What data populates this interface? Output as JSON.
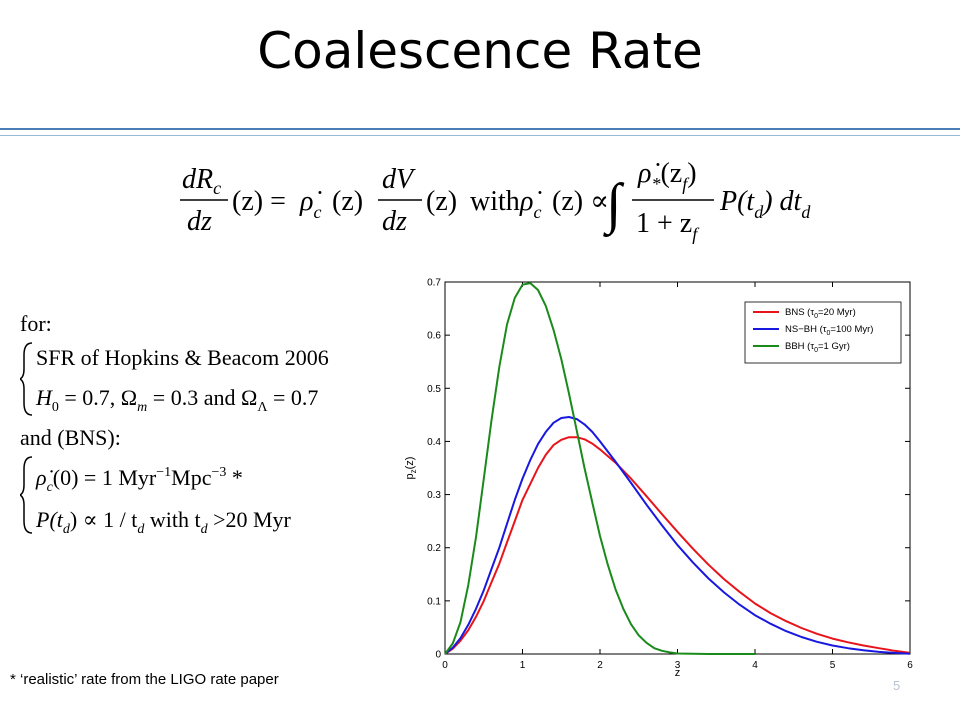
{
  "slide": {
    "title": "Coalescence Rate",
    "footnote": "* ‘realistic’ rate from the LIGO rate paper",
    "page_number": "5",
    "accent_color": "#4a7fb5"
  },
  "formula": {
    "lhs_num": "dR",
    "lhs_num_sub": "c",
    "lhs_den": "dz",
    "arg_z": "(z) =",
    "rho_glyph": "ρ̇",
    "rho_sub": "c",
    "rho_arg": "(z)",
    "dv_num": "dV",
    "dv_den": "dz",
    "dv_arg": "(z)",
    "with": "with",
    "rho2_arg": "(z) ∝",
    "integral": "∫",
    "star_glyph": "ρ̇",
    "star_sub": "*",
    "star_arg": "(z",
    "star_arg_sub": "f",
    "star_close": ")",
    "den_prefix": "1 + z",
    "den_sub": "f",
    "ptd": "P(t",
    "ptd_sub": "d",
    "ptd_close": ") dt",
    "dt_sub": "d"
  },
  "conditions": {
    "for_label": "for:",
    "line1": "SFR of Hopkins & Beacom 2006",
    "line2_h": "H",
    "line2_h_sub": "0",
    "line2_rest": " = 0.7,  Ω",
    "line2_om_sub": "m",
    "line2_mid": " = 0.3 and Ω",
    "line2_ol_sub": "Λ",
    "line2_end": " = 0.7",
    "bns_label": "and (BNS):",
    "rho_glyph": "ρ̇",
    "rho_sub": "c",
    "line3_rest": "(0) = 1 Myr",
    "line3_sup1": "−1",
    "line3_mpc": "Mpc",
    "line3_sup2": "−3",
    "line3_star": " *",
    "line4_p": "P(t",
    "line4_p_sub": "d",
    "line4_mid": ") ∝ 1 / t",
    "line4_td_sub": "d",
    "line4_with": "  with t",
    "line4_with_sub": "d",
    "line4_end": " >20 Myr"
  },
  "chart_data": {
    "type": "line",
    "xlabel": "z",
    "ylabel": "p_z(z)",
    "xlim": [
      0,
      6
    ],
    "ylim": [
      0,
      0.7
    ],
    "xticks": [
      "0",
      "1",
      "2",
      "3",
      "4",
      "5",
      "6"
    ],
    "yticks": [
      "0",
      "0.1",
      "0.2",
      "0.3",
      "0.4",
      "0.5",
      "0.6",
      "0.7"
    ],
    "grid": false,
    "legend_position": "top-right",
    "series": [
      {
        "name": "BNS (τ₀=20 Myr)",
        "legend_prefix": "BNS (τ",
        "legend_sub": "0",
        "legend_suffix": "=20 Myr)",
        "color": "#e8141c",
        "x": [
          0,
          0.1,
          0.2,
          0.3,
          0.4,
          0.5,
          0.6,
          0.7,
          0.8,
          0.9,
          1.0,
          1.1,
          1.2,
          1.3,
          1.4,
          1.5,
          1.6,
          1.7,
          1.8,
          1.9,
          2.0,
          2.2,
          2.4,
          2.6,
          2.8,
          3.0,
          3.2,
          3.4,
          3.6,
          3.8,
          4.0,
          4.2,
          4.4,
          4.6,
          4.8,
          5.0,
          5.2,
          5.4,
          5.6,
          5.8,
          6.0
        ],
        "y": [
          0,
          0.01,
          0.025,
          0.045,
          0.07,
          0.1,
          0.135,
          0.17,
          0.21,
          0.25,
          0.29,
          0.32,
          0.35,
          0.375,
          0.393,
          0.403,
          0.408,
          0.408,
          0.404,
          0.396,
          0.385,
          0.36,
          0.33,
          0.297,
          0.263,
          0.23,
          0.198,
          0.168,
          0.141,
          0.117,
          0.095,
          0.077,
          0.062,
          0.049,
          0.038,
          0.029,
          0.022,
          0.016,
          0.011,
          0.006,
          0.002
        ]
      },
      {
        "name": "NS−BH (τ₀=100 Myr)",
        "legend_prefix": "NS−BH (τ",
        "legend_sub": "0",
        "legend_suffix": "=100 Myr)",
        "color": "#1818e0",
        "x": [
          0,
          0.1,
          0.2,
          0.3,
          0.4,
          0.5,
          0.6,
          0.7,
          0.8,
          0.9,
          1.0,
          1.1,
          1.2,
          1.3,
          1.4,
          1.5,
          1.6,
          1.7,
          1.8,
          1.9,
          2.0,
          2.2,
          2.4,
          2.6,
          2.8,
          3.0,
          3.2,
          3.4,
          3.6,
          3.8,
          4.0,
          4.2,
          4.4,
          4.6,
          4.8,
          5.0,
          5.2,
          5.4,
          5.6,
          5.8,
          6.0
        ],
        "y": [
          0,
          0.012,
          0.03,
          0.055,
          0.085,
          0.12,
          0.16,
          0.2,
          0.245,
          0.29,
          0.33,
          0.365,
          0.395,
          0.418,
          0.435,
          0.444,
          0.446,
          0.442,
          0.432,
          0.418,
          0.4,
          0.362,
          0.322,
          0.281,
          0.242,
          0.205,
          0.172,
          0.142,
          0.116,
          0.093,
          0.073,
          0.057,
          0.043,
          0.032,
          0.023,
          0.016,
          0.011,
          0.007,
          0.004,
          0.002,
          0.0005
        ]
      },
      {
        "name": "BBH (τ₀=1 Gyr)",
        "legend_prefix": "BBH (τ",
        "legend_sub": "0",
        "legend_suffix": "=1 Gyr)",
        "color": "#1a8a1a",
        "x": [
          0,
          0.1,
          0.2,
          0.3,
          0.4,
          0.5,
          0.6,
          0.7,
          0.8,
          0.9,
          1.0,
          1.1,
          1.2,
          1.3,
          1.4,
          1.5,
          1.6,
          1.7,
          1.8,
          1.9,
          2.0,
          2.1,
          2.2,
          2.3,
          2.4,
          2.5,
          2.6,
          2.7,
          2.8,
          2.9,
          3.0,
          3.2,
          3.4,
          3.6,
          4.0
        ],
        "y": [
          0,
          0.02,
          0.06,
          0.13,
          0.22,
          0.33,
          0.44,
          0.54,
          0.62,
          0.67,
          0.695,
          0.698,
          0.685,
          0.655,
          0.61,
          0.555,
          0.49,
          0.42,
          0.35,
          0.285,
          0.222,
          0.168,
          0.122,
          0.085,
          0.056,
          0.035,
          0.021,
          0.011,
          0.006,
          0.003,
          0.001,
          0.0003,
          0,
          0,
          0
        ]
      }
    ]
  }
}
